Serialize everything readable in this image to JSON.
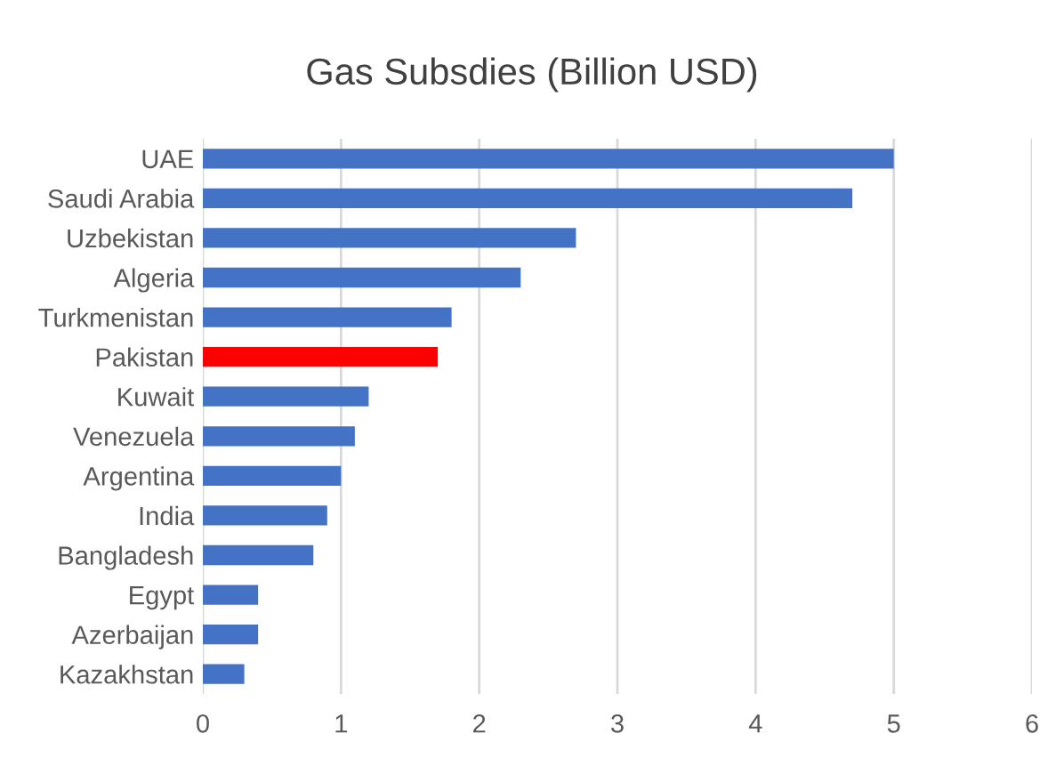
{
  "chart_data": {
    "type": "bar",
    "orientation": "horizontal",
    "title": "Gas Subsdies (Billion USD)",
    "categories": [
      "UAE",
      "Saudi Arabia",
      "Uzbekistan",
      "Algeria",
      "Turkmenistan",
      "Pakistan",
      "Kuwait",
      "Venezuela",
      "Argentina",
      "India",
      "Bangladesh",
      "Egypt",
      "Azerbaijan",
      "Kazakhstan"
    ],
    "values": [
      5.0,
      4.7,
      2.7,
      2.3,
      1.8,
      1.7,
      1.2,
      1.1,
      1.0,
      0.9,
      0.8,
      0.4,
      0.4,
      0.3
    ],
    "colors": [
      "#4472c4",
      "#4472c4",
      "#4472c4",
      "#4472c4",
      "#4472c4",
      "#ff0000",
      "#4472c4",
      "#4472c4",
      "#4472c4",
      "#4472c4",
      "#4472c4",
      "#4472c4",
      "#4472c4",
      "#4472c4"
    ],
    "xlim": [
      0,
      6
    ],
    "xticks": [
      0,
      1,
      2,
      3,
      4,
      5,
      6
    ],
    "grid": "x"
  }
}
